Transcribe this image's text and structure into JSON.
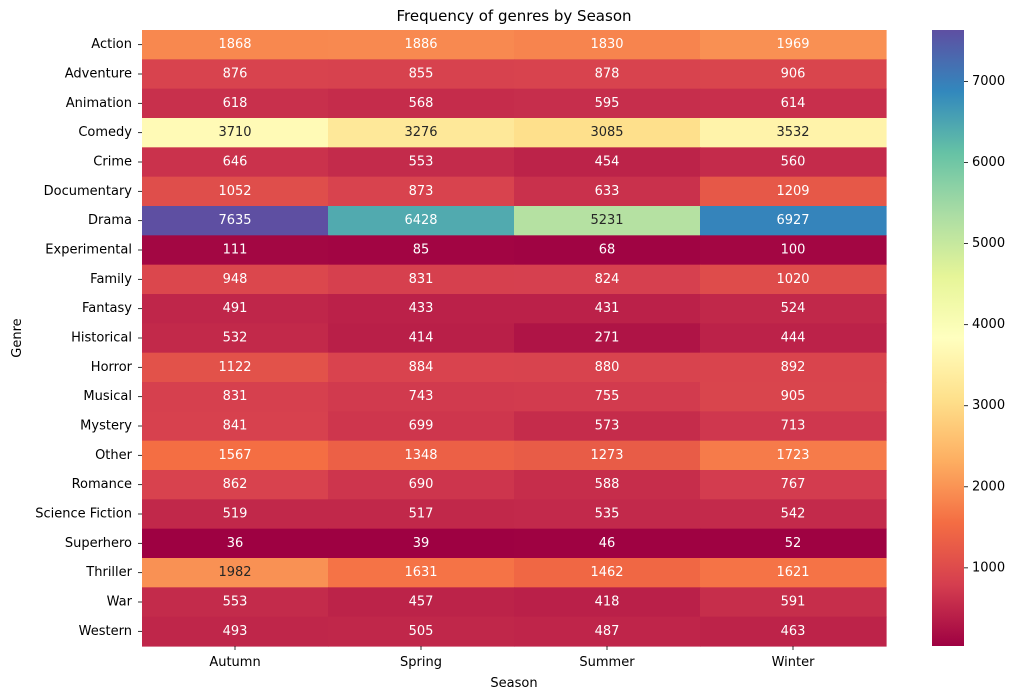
{
  "chart_data": {
    "type": "heatmap",
    "title": "Frequency of genres by Season",
    "xlabel": "Season",
    "ylabel": "Genre",
    "x": [
      "Autumn",
      "Spring",
      "Summer",
      "Winter"
    ],
    "y": [
      "Action",
      "Adventure",
      "Animation",
      "Comedy",
      "Crime",
      "Documentary",
      "Drama",
      "Experimental",
      "Family",
      "Fantasy",
      "Historical",
      "Horror",
      "Musical",
      "Mystery",
      "Other",
      "Romance",
      "Science Fiction",
      "Superhero",
      "Thriller",
      "War",
      "Western"
    ],
    "values": [
      [
        1868,
        1886,
        1830,
        1969
      ],
      [
        876,
        855,
        878,
        906
      ],
      [
        618,
        568,
        595,
        614
      ],
      [
        3710,
        3276,
        3085,
        3532
      ],
      [
        646,
        553,
        454,
        560
      ],
      [
        1052,
        873,
        633,
        1209
      ],
      [
        7635,
        6428,
        5231,
        6927
      ],
      [
        111,
        85,
        68,
        100
      ],
      [
        948,
        831,
        824,
        1020
      ],
      [
        491,
        433,
        431,
        524
      ],
      [
        532,
        414,
        271,
        444
      ],
      [
        1122,
        884,
        880,
        892
      ],
      [
        831,
        743,
        755,
        905
      ],
      [
        841,
        699,
        573,
        713
      ],
      [
        1567,
        1348,
        1273,
        1723
      ],
      [
        862,
        690,
        588,
        767
      ],
      [
        519,
        517,
        535,
        542
      ],
      [
        36,
        39,
        46,
        52
      ],
      [
        1982,
        1631,
        1462,
        1621
      ],
      [
        553,
        457,
        418,
        591
      ],
      [
        493,
        505,
        487,
        463
      ]
    ],
    "colorscale": "Spectral",
    "vmin": 36,
    "vmax": 7635,
    "colorbar_ticks": [
      1000,
      2000,
      3000,
      4000,
      5000,
      6000,
      7000
    ],
    "colorbar_tick_labels": [
      "1000",
      "2000",
      "3000",
      "4000",
      "5000",
      "6000",
      "7000"
    ],
    "annotation_color_dark": "#262626",
    "annotation_color_light": "#ffffff"
  }
}
